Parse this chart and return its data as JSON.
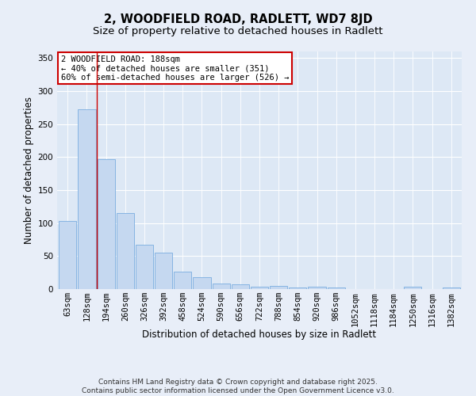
{
  "title1": "2, WOODFIELD ROAD, RADLETT, WD7 8JD",
  "title2": "Size of property relative to detached houses in Radlett",
  "xlabel": "Distribution of detached houses by size in Radlett",
  "ylabel": "Number of detached properties",
  "categories": [
    "63sqm",
    "128sqm",
    "194sqm",
    "260sqm",
    "326sqm",
    "392sqm",
    "458sqm",
    "524sqm",
    "590sqm",
    "656sqm",
    "722sqm",
    "788sqm",
    "854sqm",
    "920sqm",
    "986sqm",
    "1052sqm",
    "1118sqm",
    "1184sqm",
    "1250sqm",
    "1316sqm",
    "1382sqm"
  ],
  "bar_heights": [
    103,
    272,
    197,
    115,
    67,
    55,
    27,
    18,
    9,
    7,
    4,
    5,
    3,
    4,
    3,
    0,
    0,
    0,
    4,
    0,
    3
  ],
  "ylim": [
    0,
    360
  ],
  "yticks": [
    0,
    50,
    100,
    150,
    200,
    250,
    300,
    350
  ],
  "bar_color": "#c5d8f0",
  "bar_edge_color": "#7aade0",
  "bar_edge_width": 0.6,
  "bg_color": "#dde8f5",
  "fig_bg_color": "#e8eef8",
  "grid_color": "#ffffff",
  "red_line_x": 1.5,
  "annotation_title": "2 WOODFIELD ROAD: 188sqm",
  "annotation_line1": "← 40% of detached houses are smaller (351)",
  "annotation_line2": "60% of semi-detached houses are larger (526) →",
  "annotation_box_color": "#ffffff",
  "annotation_border_color": "#cc0000",
  "footer": "Contains HM Land Registry data © Crown copyright and database right 2025.\nContains public sector information licensed under the Open Government Licence v3.0.",
  "title_fontsize": 10.5,
  "subtitle_fontsize": 9.5,
  "axis_label_fontsize": 8.5,
  "tick_fontsize": 7.5,
  "annotation_fontsize": 7.5,
  "footer_fontsize": 6.5
}
